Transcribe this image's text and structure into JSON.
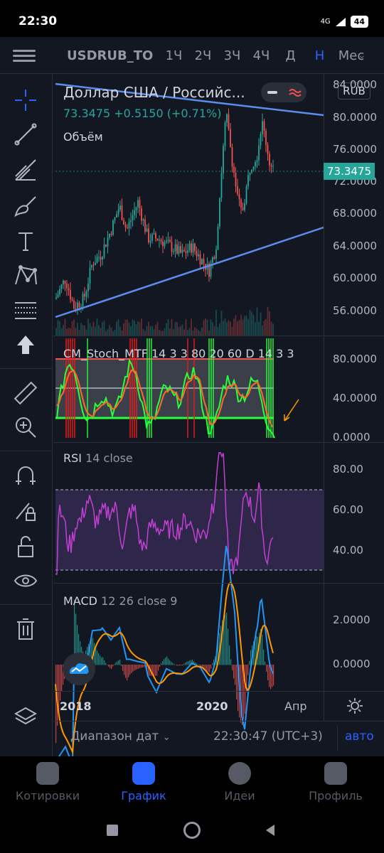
{
  "status": {
    "time": "22:30",
    "signal": "4G",
    "battery": "44"
  },
  "header": {
    "symbol": "USDRUB_TO",
    "timeframes": [
      "1Ч",
      "2Ч",
      "3Ч",
      "4Ч",
      "Д",
      "Н",
      "Мес"
    ],
    "active_timeframe": "Н"
  },
  "main_pane": {
    "title": "Доллар США / Российс...",
    "last": "73.3475",
    "change": "+0.5150 (+0.71%)",
    "volume_label": "Объём",
    "currency": "RUB",
    "price_axis": [
      "84.0000",
      "80.0000",
      "76.0000",
      "72.0000",
      "68.0000",
      "64.0000",
      "60.0000",
      "56.0000"
    ],
    "last_price_tag": "73.3475"
  },
  "stoch_pane": {
    "label": "CM_Stoch_MTF 14 3 3 80 20 60 D 14 3 3",
    "axis": [
      "80.0000",
      "40.0000",
      "0.0000"
    ]
  },
  "rsi_pane": {
    "name": "RSI",
    "params": "14 close",
    "axis": [
      "80.00",
      "60.00",
      "40.00"
    ]
  },
  "macd_pane": {
    "name": "MACD",
    "params": "12 26 close 9",
    "axis": [
      "2.0000",
      "0.0000"
    ]
  },
  "x_axis": [
    "2018",
    "2020",
    "Апр"
  ],
  "range_bar": {
    "label": "Диапазон дат",
    "clock": "22:30:47 (UTC+3)",
    "auto": "авто"
  },
  "bottom_nav": [
    {
      "label": "Котировки",
      "icon": "list-icon"
    },
    {
      "label": "График",
      "icon": "chart-icon",
      "active": true
    },
    {
      "label": "Идеи",
      "icon": "bulb-icon"
    },
    {
      "label": "Профиль",
      "icon": "smile-icon"
    }
  ],
  "colors": {
    "background": "#131722",
    "up": "#26a69a",
    "down": "#ef5350",
    "accent": "#2962ff",
    "trendline": "#5b8def",
    "rsi": "#ab47bc",
    "macd": "#2196f3",
    "signal": "#ff9800"
  }
}
